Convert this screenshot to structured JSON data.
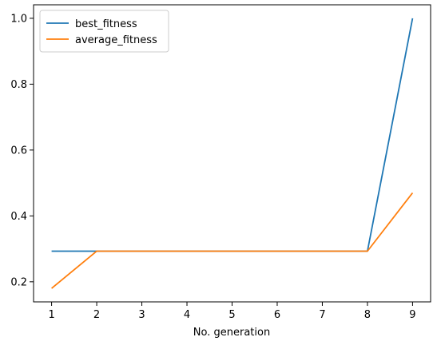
{
  "chart_data": {
    "type": "line",
    "title": "",
    "xlabel": "No. generation",
    "ylabel": "",
    "x": [
      1,
      2,
      3,
      4,
      5,
      6,
      7,
      8,
      9
    ],
    "xticks": [
      "1",
      "2",
      "3",
      "4",
      "5",
      "6",
      "7",
      "8",
      "9"
    ],
    "yticks": [
      "0.2",
      "0.4",
      "0.6",
      "0.8",
      "1.0"
    ],
    "xlim": [
      0.6,
      9.4
    ],
    "ylim": [
      0.139,
      1.041
    ],
    "grid": false,
    "legend_position": "upper-left",
    "series": [
      {
        "name": "best_fitness",
        "color": "#1f77b4",
        "values": [
          0.293,
          0.293,
          0.293,
          0.293,
          0.293,
          0.293,
          0.293,
          0.293,
          1.0
        ]
      },
      {
        "name": "average_fitness",
        "color": "#ff7f0e",
        "values": [
          0.18,
          0.293,
          0.293,
          0.293,
          0.293,
          0.293,
          0.293,
          0.293,
          0.47
        ]
      }
    ]
  }
}
